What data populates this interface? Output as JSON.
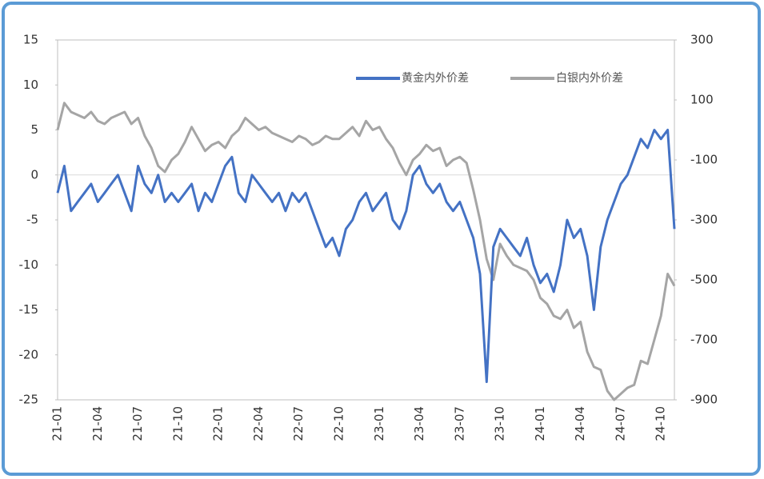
{
  "chart_data": {
    "type": "line",
    "categories": [
      "21-01",
      null,
      null,
      null,
      null,
      null,
      "21-04",
      null,
      null,
      null,
      null,
      null,
      "21-07",
      null,
      null,
      null,
      null,
      null,
      "21-10",
      null,
      null,
      null,
      null,
      null,
      "22-01",
      null,
      null,
      null,
      null,
      null,
      "22-04",
      null,
      null,
      null,
      null,
      null,
      "22-07",
      null,
      null,
      null,
      null,
      null,
      "22-10",
      null,
      null,
      null,
      null,
      null,
      "23-01",
      null,
      null,
      null,
      null,
      null,
      "23-04",
      null,
      null,
      null,
      null,
      null,
      "23-07",
      null,
      null,
      null,
      null,
      null,
      "23-10",
      null,
      null,
      null,
      null,
      null,
      "24-01",
      null,
      null,
      null,
      null,
      null,
      "24-04",
      null,
      null,
      null,
      null,
      null,
      "24-07",
      null,
      null,
      null,
      null,
      null,
      "24-10",
      null,
      null
    ],
    "series": [
      {
        "name": "黄金内外价差",
        "color": "#4472c4",
        "axis": "y",
        "values": [
          -2,
          1,
          -4,
          -3,
          -2,
          -1,
          -3,
          -2,
          -1,
          0,
          -2,
          -4,
          1,
          -1,
          -2,
          0,
          -3,
          -2,
          -3,
          -2,
          -1,
          -4,
          -2,
          -3,
          -1,
          1,
          2,
          -2,
          -3,
          0,
          -1,
          -2,
          -3,
          -2,
          -4,
          -2,
          -3,
          -2,
          -4,
          -6,
          -8,
          -7,
          -9,
          -6,
          -5,
          -3,
          -2,
          -4,
          -3,
          -2,
          -5,
          -6,
          -4,
          0,
          1,
          -1,
          -2,
          -1,
          -3,
          -4,
          -3,
          -5,
          -7,
          -11,
          -23,
          -8,
          -6,
          -7,
          -8,
          -9,
          -7,
          -10,
          -12,
          -11,
          -13,
          -10,
          -5,
          -7,
          -6,
          -9,
          -15,
          -8,
          -5,
          -3,
          -1,
          0,
          2,
          4,
          3,
          5,
          4,
          5,
          -6
        ]
      },
      {
        "name": "白银内外价差",
        "color": "#a5a5a5",
        "axis": "y2",
        "values": [
          0,
          90,
          60,
          50,
          40,
          60,
          30,
          20,
          40,
          50,
          60,
          20,
          40,
          -20,
          -60,
          -120,
          -140,
          -100,
          -80,
          -40,
          10,
          -30,
          -70,
          -50,
          -40,
          -60,
          -20,
          0,
          40,
          20,
          0,
          10,
          -10,
          -20,
          -30,
          -40,
          -20,
          -30,
          -50,
          -40,
          -20,
          -30,
          -30,
          -10,
          10,
          -20,
          30,
          0,
          10,
          -30,
          -60,
          -110,
          -150,
          -100,
          -80,
          -50,
          -70,
          -60,
          -120,
          -100,
          -90,
          -110,
          -200,
          -300,
          -430,
          -500,
          -380,
          -420,
          -450,
          -460,
          -470,
          -500,
          -560,
          -580,
          -620,
          -630,
          -600,
          -660,
          -640,
          -740,
          -790,
          -800,
          -870,
          -900,
          -880,
          -860,
          -850,
          -770,
          -780,
          -700,
          -620,
          -480,
          -520
        ]
      }
    ],
    "ylim": [
      -25,
      15
    ],
    "yticks": [
      15,
      10,
      5,
      0,
      -5,
      -10,
      -15,
      -20,
      -25
    ],
    "y2lim": [
      -900,
      300
    ],
    "y2ticks": [
      300,
      100,
      -100,
      -300,
      -500,
      -700,
      -900
    ],
    "grid": false,
    "legend": "top-right"
  }
}
